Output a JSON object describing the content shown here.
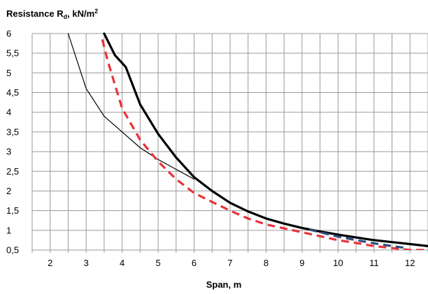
{
  "chart_data": {
    "type": "line",
    "title_main": "Resistance R",
    "title_sub": "d",
    "title_tail": ", kN/m",
    "title_sup": "2",
    "xlabel": "Span, m",
    "xlim": [
      1.5,
      12.5
    ],
    "ylim": [
      0.5,
      6
    ],
    "x_ticks": [
      "2",
      "3",
      "4",
      "5",
      "6",
      "7",
      "8",
      "9",
      "10",
      "11",
      "12"
    ],
    "y_ticks": [
      "6",
      "5,5",
      "5",
      "4,5",
      "4",
      "3,5",
      "3",
      "2,5",
      "2",
      "1,5",
      "1",
      "0,5"
    ],
    "grid": true,
    "series": [
      {
        "color": "#000000",
        "style": "thin",
        "points": [
          [
            2.5,
            6.0
          ],
          [
            3.0,
            4.6
          ],
          [
            3.5,
            3.9
          ],
          [
            4.0,
            3.5
          ],
          [
            4.5,
            3.1
          ],
          [
            5.0,
            2.8
          ],
          [
            5.5,
            2.55
          ],
          [
            6.0,
            2.3
          ]
        ]
      },
      {
        "color": "#000000",
        "style": "thick",
        "points": [
          [
            3.5,
            6.0
          ],
          [
            3.8,
            5.45
          ],
          [
            4.1,
            5.15
          ],
          [
            4.5,
            4.2
          ],
          [
            5.0,
            3.45
          ],
          [
            5.5,
            2.85
          ],
          [
            6.0,
            2.35
          ],
          [
            6.5,
            2.0
          ],
          [
            7.0,
            1.7
          ],
          [
            7.5,
            1.48
          ],
          [
            8.0,
            1.3
          ],
          [
            8.5,
            1.17
          ],
          [
            9.0,
            1.06
          ],
          [
            9.5,
            0.97
          ],
          [
            10.0,
            0.89
          ],
          [
            10.5,
            0.82
          ],
          [
            11.0,
            0.75
          ],
          [
            11.5,
            0.7
          ],
          [
            12.0,
            0.65
          ],
          [
            12.5,
            0.6
          ]
        ]
      },
      {
        "color": "#e8333a",
        "style": "dashed",
        "points": [
          [
            3.45,
            5.85
          ],
          [
            3.6,
            5.3
          ],
          [
            4.0,
            4.1
          ],
          [
            4.5,
            3.3
          ],
          [
            5.0,
            2.75
          ],
          [
            5.5,
            2.3
          ],
          [
            6.0,
            1.95
          ],
          [
            6.5,
            1.72
          ],
          [
            7.0,
            1.5
          ],
          [
            7.5,
            1.3
          ],
          [
            8.0,
            1.15
          ],
          [
            8.5,
            1.05
          ],
          [
            9.0,
            0.95
          ],
          [
            9.5,
            0.85
          ],
          [
            10.0,
            0.75
          ],
          [
            10.5,
            0.68
          ],
          [
            11.0,
            0.6
          ],
          [
            11.5,
            0.55
          ],
          [
            12.0,
            0.5
          ],
          [
            12.5,
            0.5
          ]
        ]
      },
      {
        "color": "#2d4d7a",
        "style": "dashed",
        "points": [
          [
            9.2,
            1.02
          ],
          [
            9.6,
            0.93
          ],
          [
            10.0,
            0.84
          ],
          [
            10.5,
            0.75
          ],
          [
            11.0,
            0.67
          ],
          [
            11.5,
            0.6
          ],
          [
            11.9,
            0.55
          ]
        ]
      }
    ]
  }
}
